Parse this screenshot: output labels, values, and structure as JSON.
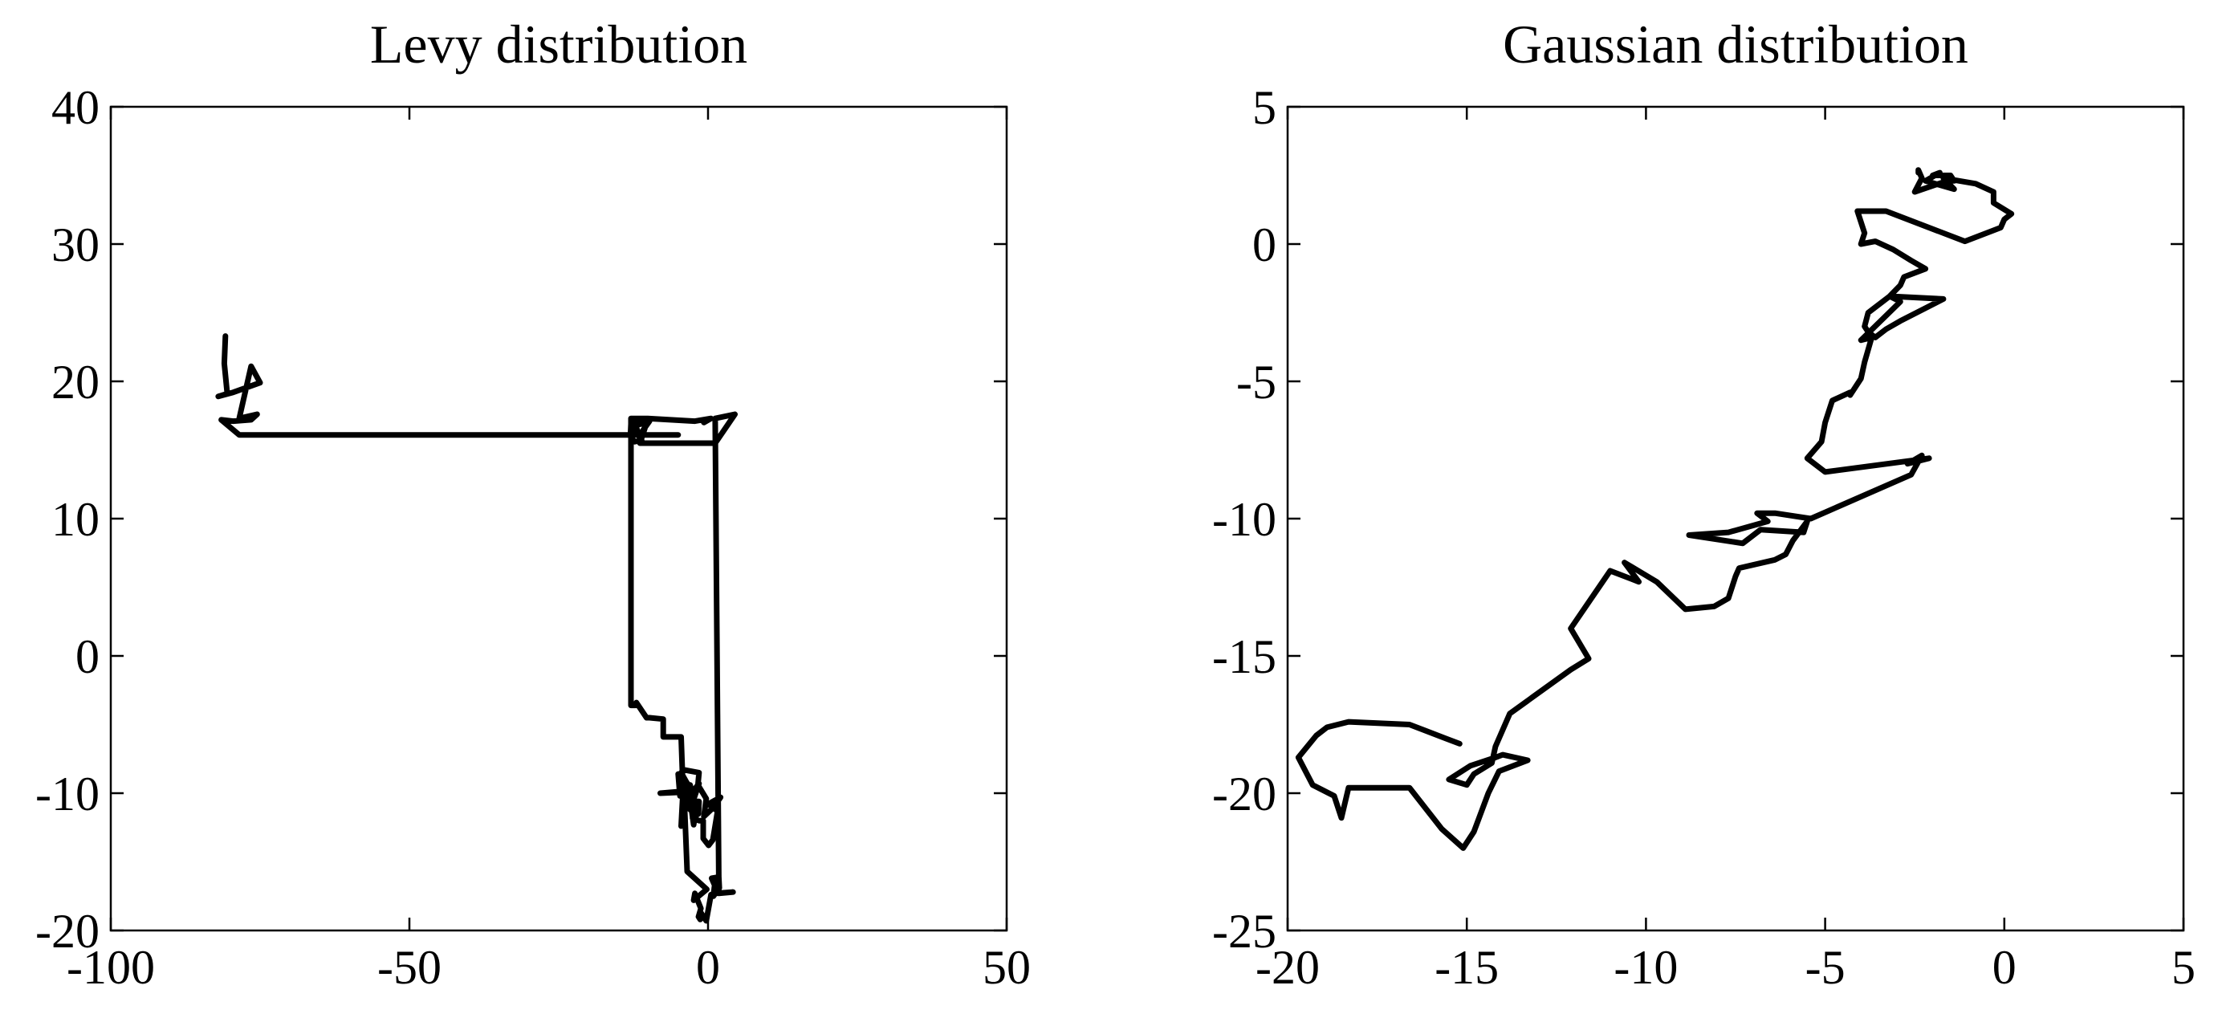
{
  "chart_data": [
    {
      "type": "line",
      "title": "Levy distribution",
      "xlabel": "",
      "ylabel": "",
      "xlim": [
        -100,
        50
      ],
      "ylim": [
        -20,
        40
      ],
      "xticks": [
        -100,
        -50,
        0,
        50
      ],
      "yticks": [
        -20,
        -10,
        0,
        10,
        20,
        30,
        40
      ],
      "xtick_labels": [
        "-100",
        "-50",
        "0",
        "50"
      ],
      "ytick_labels": [
        "-20",
        "-10",
        "0",
        "10",
        "20",
        "30",
        "40"
      ],
      "grid": false,
      "series": [
        {
          "color": "#000000",
          "x": [
            -80.8,
            -81.0,
            -80.5,
            -82.0,
            -79.5,
            -75.0,
            -76.5,
            -78.5,
            -75.5,
            -76.5,
            -79.5,
            -81.5,
            -78.5,
            -5.0,
            -12.9,
            -12.9,
            -12.9,
            -12.1,
            -12.0,
            -10.3,
            -9.8,
            -7.5,
            -7.5,
            -4.5,
            -4.2,
            -5.2,
            -8.0,
            -2.7,
            -3.2,
            -1.5,
            -1.6,
            -2.6,
            -1.5,
            -0.8,
            -0.8,
            0.1,
            0.8,
            1.6,
            0.0,
            2.1,
            1.0,
            -0.7,
            -0.3,
            -1.7,
            -1.5,
            -4.0,
            -4.5,
            -3.6,
            -3.3,
            -2.8,
            -4.7,
            -4.1,
            -4.0,
            -4.5,
            -5.0,
            -4.8,
            -3.0,
            -2.4,
            -2.0,
            -3.0,
            -3.0,
            -1.5,
            -3.5,
            -4.5,
            -4.1,
            -3.5,
            -0.2,
            -2.4,
            -2.2,
            -1.2,
            -1.6,
            -1.3,
            -1.2,
            -0.3,
            0.5,
            1.6,
            0.6,
            1.8,
            1.9,
            0.9,
            1.2,
            1.3,
            4.2,
            1.8,
            1.8,
            1.2,
            4.5,
            1.2,
            -11.4,
            -10.4,
            -11.8,
            -12.3,
            -11.6,
            -9.8,
            -12.7,
            -11.1,
            -12.3,
            -13.0,
            -12.9,
            -12.9,
            -10.1,
            -2.2,
            0.5,
            -0.7
          ],
          "y": [
            23.3,
            21.3,
            19.1,
            18.9,
            19.2,
            19.9,
            21.1,
            17.3,
            17.6,
            17.2,
            17.1,
            17.2,
            16.1,
            16.1,
            16.1,
            5.0,
            -3.6,
            -3.6,
            -3.4,
            -4.5,
            -4.5,
            -4.6,
            -5.9,
            -5.9,
            -9.7,
            -9.9,
            -10.0,
            -9.9,
            -10.6,
            -10.6,
            -11.5,
            -11.8,
            -12.0,
            -12.0,
            -13.3,
            -13.8,
            -13.4,
            -11.3,
            -10.8,
            -10.3,
            -11.0,
            -11.7,
            -10.4,
            -9.4,
            -8.5,
            -8.3,
            -8.5,
            -9.2,
            -9.4,
            -10.2,
            -10.2,
            -9.6,
            -9.0,
            -8.8,
            -8.6,
            -9.7,
            -10.5,
            -12.3,
            -11.2,
            -9.4,
            -11.2,
            -9.3,
            -10.4,
            -12.4,
            -9.1,
            -15.7,
            -17.0,
            -17.8,
            -17.3,
            -18.4,
            -19.0,
            -19.2,
            -18.7,
            -19.3,
            -17.4,
            -17.2,
            -16.2,
            -16.1,
            -16.9,
            -17.5,
            -16.3,
            -17.3,
            -17.2,
            -17.3,
            -16.2,
            17.3,
            17.6,
            15.5,
            15.5,
            16.8,
            17.0,
            17.2,
            16.0,
            17.1,
            16.7,
            15.7,
            15.6,
            16.0,
            16.9,
            17.3,
            17.3,
            17.1,
            17.3,
            17.0
          ]
        }
      ]
    },
    {
      "type": "line",
      "title": "Gaussian distribution",
      "xlabel": "",
      "ylabel": "",
      "xlim": [
        -20,
        5
      ],
      "ylim": [
        -25,
        5
      ],
      "xticks": [
        -20,
        -15,
        -10,
        -5,
        0,
        5
      ],
      "yticks": [
        -25,
        -20,
        -15,
        -10,
        -5,
        0,
        5
      ],
      "xtick_labels": [
        "-20",
        "-15",
        "-10",
        "-5",
        "0",
        "5"
      ],
      "ytick_labels": [
        "-25",
        "-20",
        "-15",
        "-10",
        "-5",
        "0",
        "5"
      ],
      "grid": false,
      "series": [
        {
          "color": "#000000",
          "x": [
            -15.2,
            -15.6,
            -16.6,
            -18.3,
            -18.9,
            -19.2,
            -19.7,
            -19.3,
            -18.7,
            -18.5,
            -18.3,
            -16.6,
            -15.7,
            -15.1,
            -14.8,
            -14.4,
            -14.1,
            -13.3,
            -14.0,
            -14.2,
            -14.9,
            -15.5,
            -15.0,
            -14.8,
            -14.3,
            -14.2,
            -13.8,
            -12.1,
            -11.6,
            -12.1,
            -11.0,
            -10.2,
            -10.6,
            -9.7,
            -8.9,
            -8.1,
            -7.7,
            -7.5,
            -7.4,
            -6.4,
            -6.1,
            -5.9,
            -5.5,
            -5.6,
            -6.8,
            -7.3,
            -8.8,
            -7.7,
            -6.6,
            -6.9,
            -6.4,
            -5.4,
            -2.6,
            -2.3,
            -2.7,
            -2.1,
            -5.0,
            -5.5,
            -5.1,
            -5.0,
            -4.8,
            -4.3,
            -4.3,
            -4.0,
            -3.9,
            -3.7,
            -4.0,
            -2.9,
            -3.2,
            -1.7,
            -2.9,
            -3.3,
            -3.6,
            -3.7,
            -3.8,
            -3.9,
            -3.8,
            -3.2,
            -2.9,
            -2.8,
            -2.2,
            -2.6,
            -3.1,
            -3.6,
            -4.0,
            -3.9,
            -4.1,
            -3.3,
            -1.1,
            -0.1,
            0.0,
            0.2,
            -0.3,
            -0.3,
            -0.8,
            -1.7,
            -1.4,
            -2.2,
            -1.8,
            -2.0,
            -1.5,
            -1.4,
            -1.6,
            -2.5,
            -2.3,
            -2.4,
            -2.4
          ],
          "y": [
            -18.2,
            -18.0,
            -17.5,
            -17.4,
            -17.6,
            -17.9,
            -18.7,
            -19.7,
            -20.1,
            -20.9,
            -19.8,
            -19.8,
            -21.3,
            -22.0,
            -21.4,
            -20.0,
            -19.2,
            -18.8,
            -18.6,
            -18.7,
            -19.0,
            -19.5,
            -19.7,
            -19.3,
            -18.9,
            -18.3,
            -17.1,
            -15.5,
            -15.1,
            -14.0,
            -11.9,
            -12.3,
            -11.6,
            -12.3,
            -13.3,
            -13.2,
            -12.9,
            -12.1,
            -11.8,
            -11.5,
            -11.3,
            -10.8,
            -10.1,
            -10.5,
            -10.4,
            -10.9,
            -10.6,
            -10.5,
            -10.1,
            -9.8,
            -9.8,
            -10.0,
            -8.4,
            -7.7,
            -8.0,
            -7.8,
            -8.3,
            -7.8,
            -7.2,
            -6.5,
            -5.7,
            -5.4,
            -5.5,
            -4.9,
            -4.3,
            -3.4,
            -3.5,
            -2.1,
            -1.9,
            -2.0,
            -2.8,
            -3.1,
            -3.4,
            -3.3,
            -3.2,
            -3.0,
            -2.5,
            -1.9,
            -1.5,
            -1.2,
            -0.9,
            -0.6,
            -0.2,
            0.1,
            0.0,
            0.4,
            1.2,
            1.2,
            0.1,
            0.6,
            0.9,
            1.1,
            1.5,
            1.9,
            2.2,
            2.4,
            2.0,
            2.3,
            2.6,
            2.5,
            2.5,
            2.3,
            2.3,
            1.9,
            2.4,
            2.7,
            2.6
          ]
        }
      ]
    }
  ]
}
